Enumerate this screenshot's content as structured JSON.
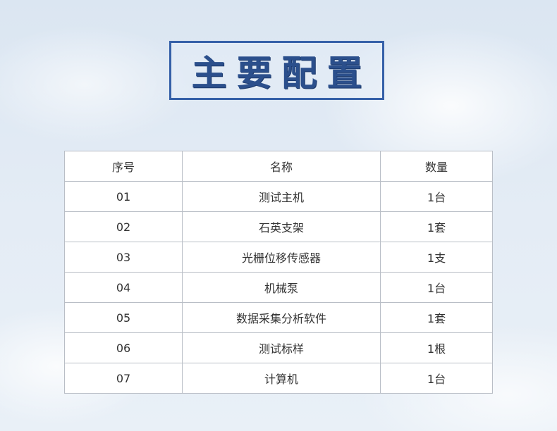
{
  "title": "主要配置",
  "table": {
    "headers": [
      "序号",
      "名称",
      "数量"
    ],
    "rows": [
      [
        "01",
        "测试主机",
        "1台"
      ],
      [
        "02",
        "石英支架",
        "1套"
      ],
      [
        "03",
        "光栅位移传感器",
        "1支"
      ],
      [
        "04",
        "机械泵",
        "1台"
      ],
      [
        "05",
        "数据采集分析软件",
        "1套"
      ],
      [
        "06",
        "测试标样",
        "1根"
      ],
      [
        "07",
        "计算机",
        "1台"
      ]
    ]
  },
  "colors": {
    "accent": "#3560a8",
    "title_text": "#2b4f8c"
  }
}
